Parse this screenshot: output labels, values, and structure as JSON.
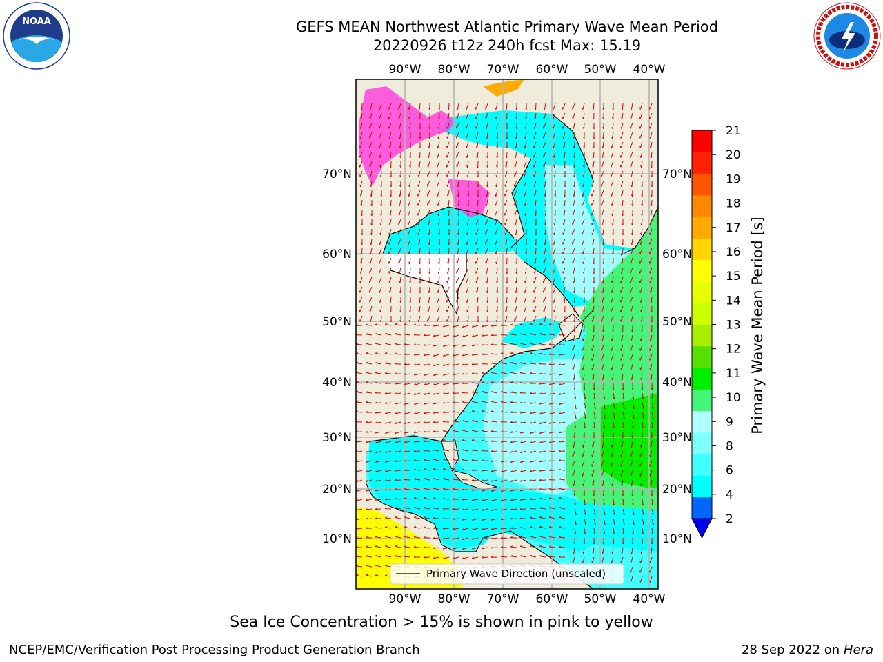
{
  "header": {
    "title_line1": "GEFS MEAN Northwest Atlantic Primary Wave Mean Period",
    "title_line2": "20220926 t12z 240h fcst   Max: 15.19"
  },
  "logos": {
    "left": {
      "text": "NOAA",
      "ring_text": "NATIONAL OCEANIC AND ATMOSPHERIC ADMINISTRATION · U.S. DEPARTMENT OF COMMERCE"
    },
    "right": {
      "ring_text": "NATIONAL WEATHER SERVICE"
    }
  },
  "map": {
    "lon_labels": [
      "90°W",
      "80°W",
      "70°W",
      "60°W",
      "50°W",
      "40°W"
    ],
    "lat_labels": [
      "70°N",
      "60°N",
      "50°N",
      "40°N",
      "30°N",
      "20°N",
      "10°N"
    ],
    "legend_label": "Primary Wave Direction (unscaled)",
    "colors": {
      "ocean_short": "#00ffff",
      "ocean_mid": "#a0ffff",
      "ocean_long": "#44f577",
      "ocean_longer": "#00ee00",
      "tropical_yellow": "#ffff00",
      "land": "#efecdc",
      "arrow": "#e00000",
      "ice": "#ff44dd"
    }
  },
  "colorbar": {
    "label": "Primary Wave Mean Period [s]",
    "ticks": [
      "2",
      "4",
      "6",
      "8",
      "9",
      "10",
      "11",
      "12",
      "13",
      "14",
      "15",
      "16",
      "17",
      "18",
      "19",
      "20",
      "21"
    ],
    "colors": [
      "#0066ff",
      "#00ffff",
      "#40ffff",
      "#80ffff",
      "#b0ffff",
      "#44f577",
      "#00ee00",
      "#55e000",
      "#a8ee00",
      "#ccff00",
      "#e8ff00",
      "#ffff00",
      "#ffd700",
      "#ffaa00",
      "#ff8800",
      "#ff5500",
      "#ff2200",
      "#ff0000"
    ],
    "extend_color": "#0000ee"
  },
  "caption": "Sea Ice Concentration > 15% is shown in pink to yellow",
  "footer": {
    "left": "NCEP/EMC/Verification Post Processing Product Generation Branch",
    "right_date": "28 Sep 2022 on",
    "right_host": "Hera"
  }
}
